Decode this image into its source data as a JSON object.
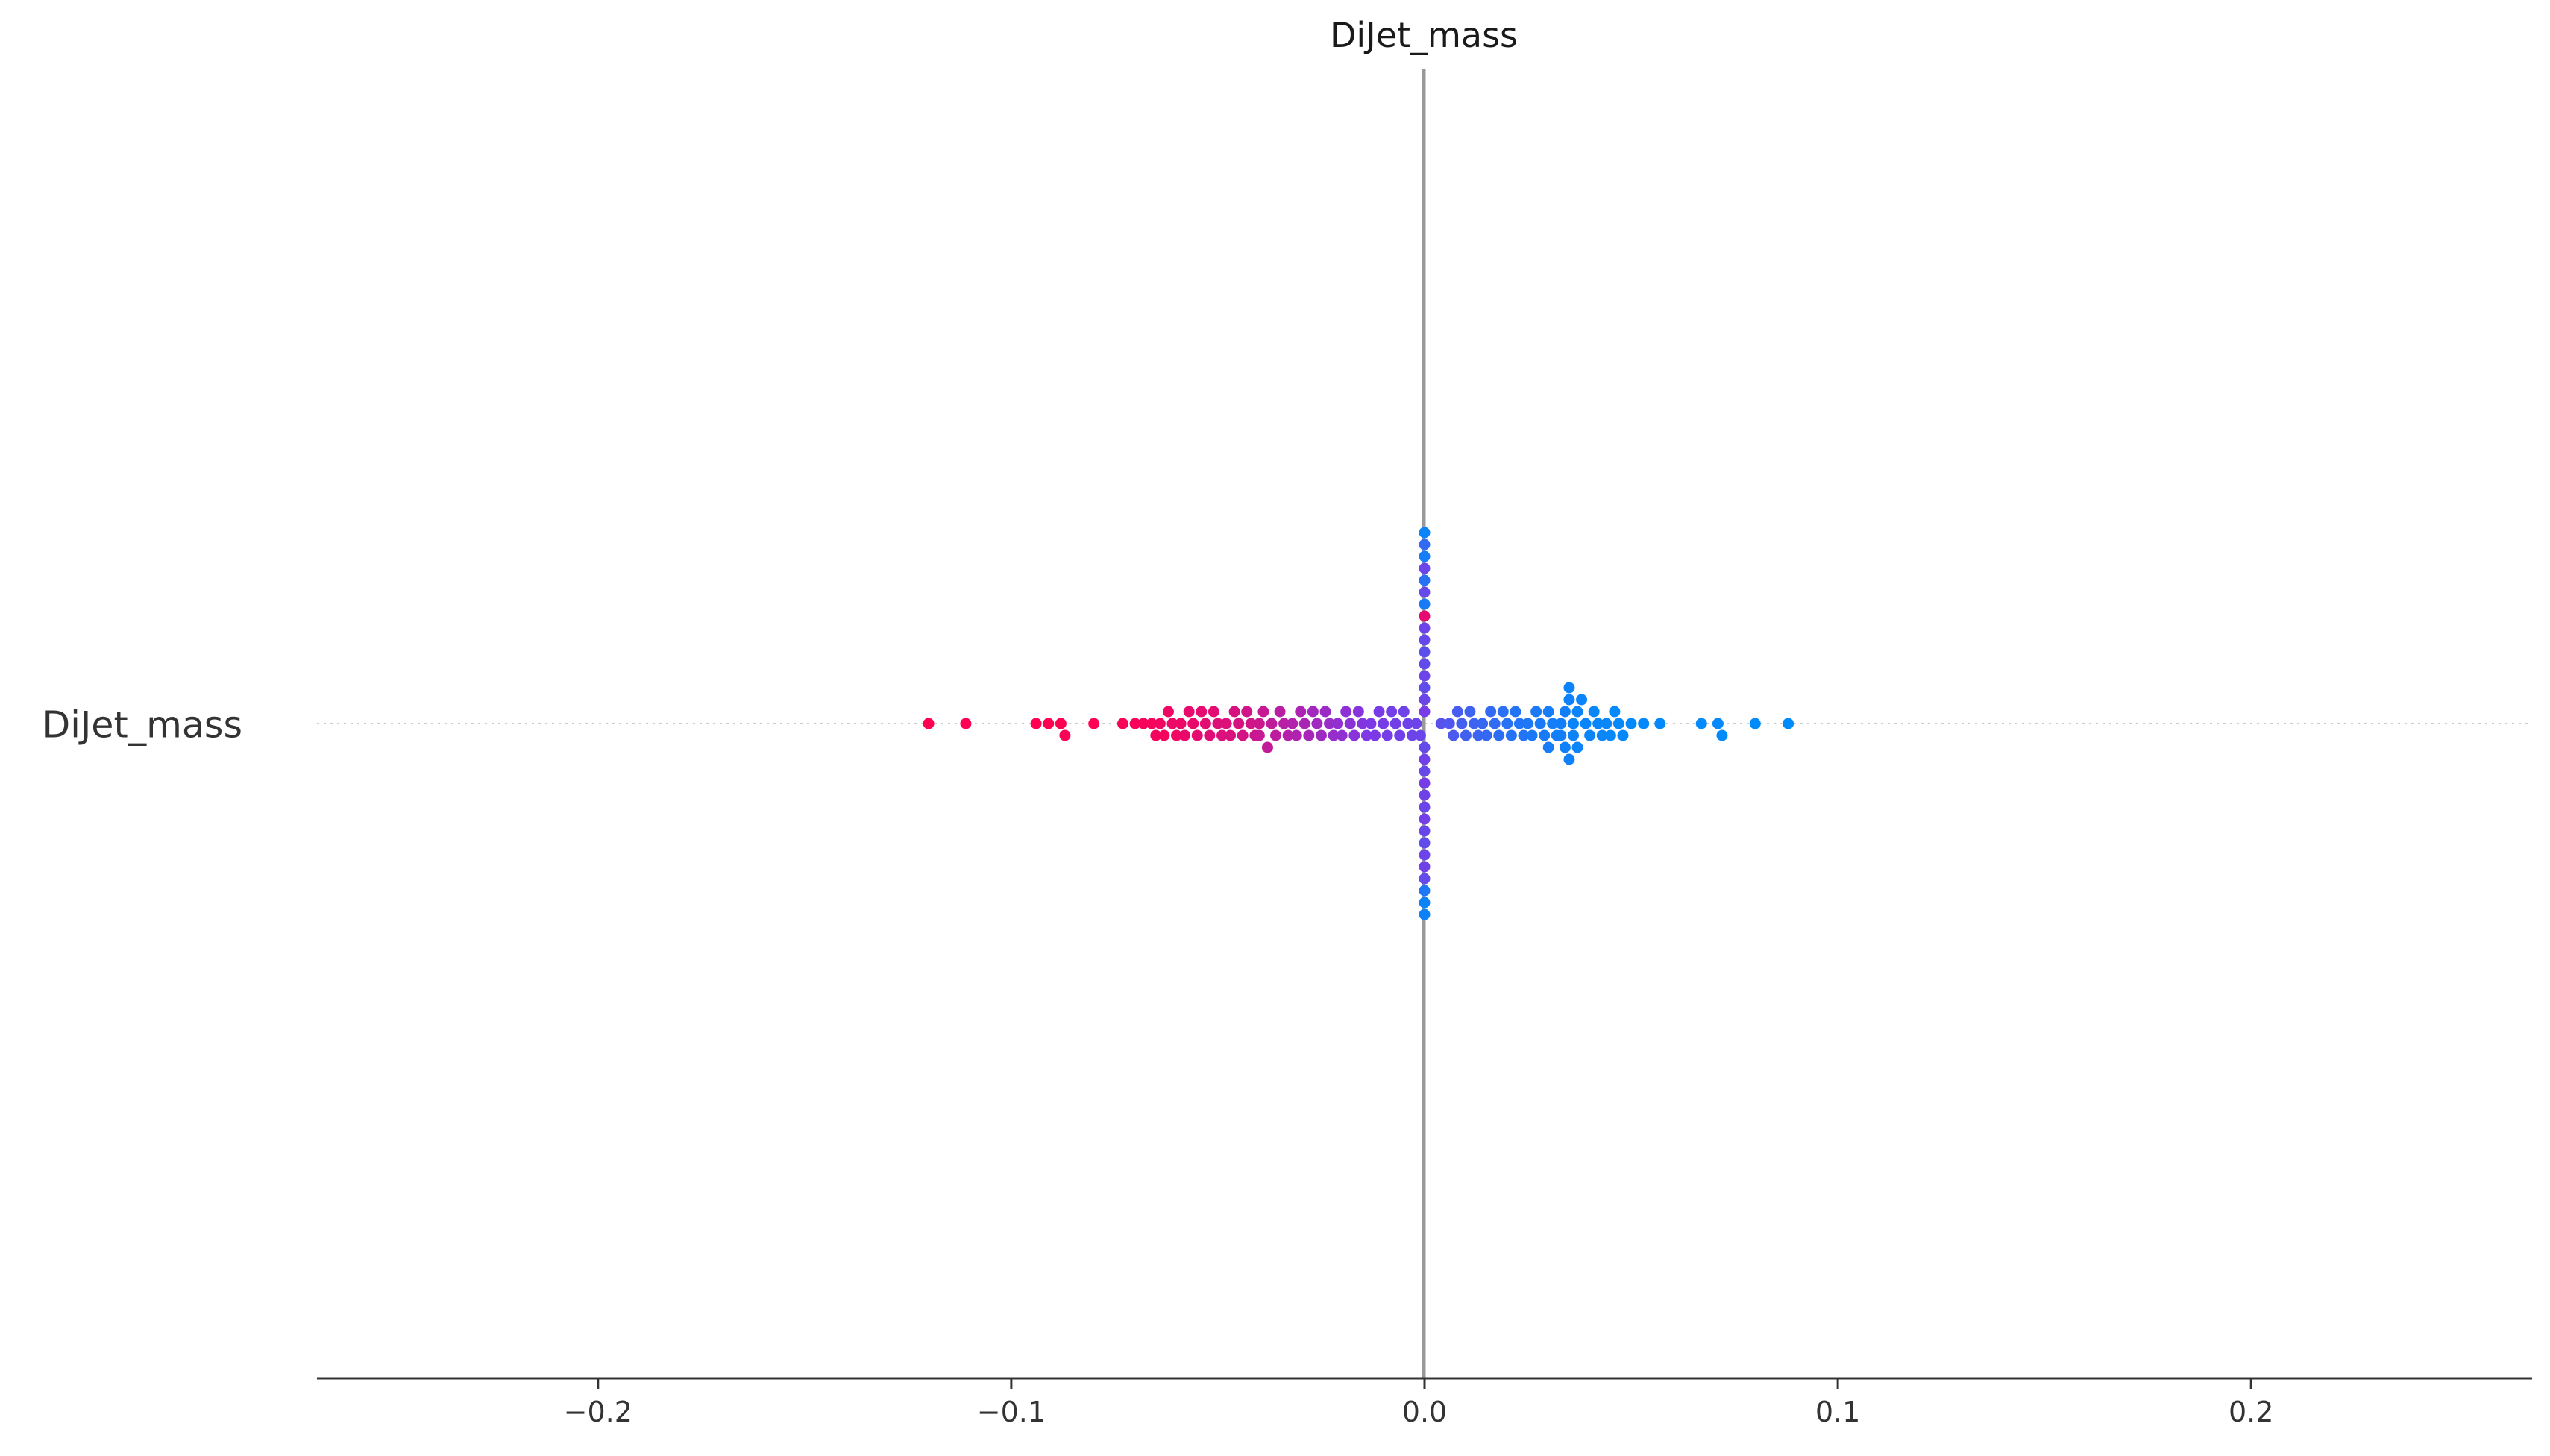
{
  "chart_data": {
    "type": "scatter",
    "title": "DiJet_mass",
    "categories": [
      "DiJet_mass"
    ],
    "xlim": [
      -0.268,
      0.268
    ],
    "x_ticks": [
      -0.2,
      -0.1,
      0.0,
      0.1,
      0.2
    ],
    "x_tick_labels": [
      "−0.2",
      "−0.1",
      "0.0",
      "0.1",
      "0.2"
    ],
    "grid": false,
    "legend": "none",
    "colors": {
      "high": "#ff0052",
      "low": "#008bfb",
      "zero_line": "#999999",
      "axis": "#333333"
    },
    "series": [
      {
        "values": [
          {
            "x": -0.12,
            "c": 1.0
          },
          {
            "x": -0.111,
            "c": 1.0
          },
          {
            "x": -0.094,
            "c": 1.0
          },
          {
            "x": -0.091,
            "c": 1.0
          },
          {
            "x": -0.088,
            "c": 1.0
          },
          {
            "x": -0.087,
            "c": 0.98
          },
          {
            "x": -0.08,
            "c": 1.0
          },
          {
            "x": -0.073,
            "c": 0.98
          },
          {
            "x": -0.07,
            "c": 0.97
          },
          {
            "x": -0.068,
            "c": 0.97
          },
          {
            "x": -0.066,
            "c": 0.97
          },
          {
            "x": -0.065,
            "c": 0.96
          },
          {
            "x": -0.064,
            "c": 0.95
          },
          {
            "x": -0.063,
            "c": 0.96
          },
          {
            "x": -0.062,
            "c": 0.94
          },
          {
            "x": -0.061,
            "c": 0.93
          },
          {
            "x": -0.06,
            "c": 0.95
          },
          {
            "x": -0.059,
            "c": 0.93
          },
          {
            "x": -0.058,
            "c": 0.92
          },
          {
            "x": -0.057,
            "c": 0.91
          },
          {
            "x": -0.056,
            "c": 0.92
          },
          {
            "x": -0.055,
            "c": 0.9
          },
          {
            "x": -0.054,
            "c": 0.9
          },
          {
            "x": -0.053,
            "c": 0.89
          },
          {
            "x": -0.052,
            "c": 0.88
          },
          {
            "x": -0.051,
            "c": 0.89
          },
          {
            "x": -0.05,
            "c": 0.87
          },
          {
            "x": -0.049,
            "c": 0.86
          },
          {
            "x": -0.048,
            "c": 0.86
          },
          {
            "x": -0.047,
            "c": 0.85
          },
          {
            "x": -0.046,
            "c": 0.84
          },
          {
            "x": -0.045,
            "c": 0.84
          },
          {
            "x": -0.044,
            "c": 0.83
          },
          {
            "x": -0.043,
            "c": 0.82
          },
          {
            "x": -0.042,
            "c": 0.82
          },
          {
            "x": -0.041,
            "c": 0.8
          },
          {
            "x": -0.04,
            "c": 0.8
          },
          {
            "x": -0.04,
            "c": 0.78
          },
          {
            "x": -0.039,
            "c": 0.78
          },
          {
            "x": -0.038,
            "c": 0.76
          },
          {
            "x": -0.037,
            "c": 0.75
          },
          {
            "x": -0.036,
            "c": 0.74
          },
          {
            "x": -0.035,
            "c": 0.73
          },
          {
            "x": -0.034,
            "c": 0.72
          },
          {
            "x": -0.033,
            "c": 0.71
          },
          {
            "x": -0.032,
            "c": 0.7
          },
          {
            "x": -0.031,
            "c": 0.69
          },
          {
            "x": -0.03,
            "c": 0.68
          },
          {
            "x": -0.029,
            "c": 0.67
          },
          {
            "x": -0.028,
            "c": 0.66
          },
          {
            "x": -0.027,
            "c": 0.64
          },
          {
            "x": -0.026,
            "c": 0.63
          },
          {
            "x": -0.025,
            "c": 0.62
          },
          {
            "x": -0.024,
            "c": 0.61
          },
          {
            "x": -0.023,
            "c": 0.6
          },
          {
            "x": -0.022,
            "c": 0.59
          },
          {
            "x": -0.021,
            "c": 0.58
          },
          {
            "x": -0.02,
            "c": 0.57
          },
          {
            "x": -0.019,
            "c": 0.56
          },
          {
            "x": -0.018,
            "c": 0.55
          },
          {
            "x": -0.017,
            "c": 0.54
          },
          {
            "x": -0.016,
            "c": 0.53
          },
          {
            "x": -0.015,
            "c": 0.52
          },
          {
            "x": -0.014,
            "c": 0.51
          },
          {
            "x": -0.013,
            "c": 0.5
          },
          {
            "x": -0.012,
            "c": 0.49
          },
          {
            "x": -0.011,
            "c": 0.48
          },
          {
            "x": -0.01,
            "c": 0.47
          },
          {
            "x": -0.009,
            "c": 0.47
          },
          {
            "x": -0.008,
            "c": 0.46
          },
          {
            "x": -0.007,
            "c": 0.45
          },
          {
            "x": -0.006,
            "c": 0.45
          },
          {
            "x": -0.005,
            "c": 0.44
          },
          {
            "x": -0.004,
            "c": 0.44
          },
          {
            "x": -0.003,
            "c": 0.43
          },
          {
            "x": -0.002,
            "c": 0.43
          },
          {
            "x": -0.001,
            "c": 0.42
          },
          {
            "x": 0.0,
            "c": 0.48
          },
          {
            "x": 0.0,
            "c": 0.4
          },
          {
            "x": 0.0,
            "c": 0.42
          },
          {
            "x": 0.0,
            "c": 0.45
          },
          {
            "x": 0.0,
            "c": 0.38
          },
          {
            "x": 0.0,
            "c": 0.41
          },
          {
            "x": 0.0,
            "c": 0.43
          },
          {
            "x": 0.0,
            "c": 0.47
          },
          {
            "x": 0.0,
            "c": 0.39
          },
          {
            "x": 0.0,
            "c": 0.44
          },
          {
            "x": 0.0,
            "c": 0.36
          },
          {
            "x": 0.0,
            "c": 0.42
          },
          {
            "x": 0.0,
            "c": 0.4
          },
          {
            "x": 0.0,
            "c": 0.46
          },
          {
            "x": 0.0,
            "c": 0.43
          },
          {
            "x": 0.0,
            "c": 0.41
          },
          {
            "x": 0.0,
            "c": 0.9
          },
          {
            "x": 0.0,
            "c": 0.38
          },
          {
            "x": 0.0,
            "c": 0.1
          },
          {
            "x": 0.0,
            "c": 0.43
          },
          {
            "x": 0.0,
            "c": 0.4
          },
          {
            "x": 0.0,
            "c": 0.44
          },
          {
            "x": 0.0,
            "c": 0.15
          },
          {
            "x": 0.0,
            "c": 0.4
          },
          {
            "x": 0.0,
            "c": 0.42
          },
          {
            "x": 0.0,
            "c": 0.12
          },
          {
            "x": 0.0,
            "c": 0.08
          },
          {
            "x": 0.0,
            "c": 0.05
          },
          {
            "x": 0.0,
            "c": 0.2
          },
          {
            "x": 0.0,
            "c": 0.06
          },
          {
            "x": 0.0,
            "c": 0.04
          },
          {
            "x": 0.004,
            "c": 0.35
          },
          {
            "x": 0.006,
            "c": 0.32
          },
          {
            "x": 0.007,
            "c": 0.3
          },
          {
            "x": 0.008,
            "c": 0.28
          },
          {
            "x": 0.009,
            "c": 0.27
          },
          {
            "x": 0.01,
            "c": 0.26
          },
          {
            "x": 0.011,
            "c": 0.25
          },
          {
            "x": 0.012,
            "c": 0.24
          },
          {
            "x": 0.013,
            "c": 0.23
          },
          {
            "x": 0.014,
            "c": 0.22
          },
          {
            "x": 0.015,
            "c": 0.21
          },
          {
            "x": 0.016,
            "c": 0.2
          },
          {
            "x": 0.017,
            "c": 0.19
          },
          {
            "x": 0.018,
            "c": 0.18
          },
          {
            "x": 0.019,
            "c": 0.17
          },
          {
            "x": 0.02,
            "c": 0.16
          },
          {
            "x": 0.021,
            "c": 0.15
          },
          {
            "x": 0.022,
            "c": 0.14
          },
          {
            "x": 0.023,
            "c": 0.13
          },
          {
            "x": 0.024,
            "c": 0.13
          },
          {
            "x": 0.025,
            "c": 0.12
          },
          {
            "x": 0.026,
            "c": 0.11
          },
          {
            "x": 0.027,
            "c": 0.11
          },
          {
            "x": 0.028,
            "c": 0.1
          },
          {
            "x": 0.029,
            "c": 0.1
          },
          {
            "x": 0.03,
            "c": 0.09
          },
          {
            "x": 0.03,
            "c": 0.09
          },
          {
            "x": 0.031,
            "c": 0.08
          },
          {
            "x": 0.032,
            "c": 0.08
          },
          {
            "x": 0.033,
            "c": 0.07
          },
          {
            "x": 0.033,
            "c": 0.07
          },
          {
            "x": 0.034,
            "c": 0.07
          },
          {
            "x": 0.034,
            "c": 0.06
          },
          {
            "x": 0.035,
            "c": 0.06
          },
          {
            "x": 0.035,
            "c": 0.06
          },
          {
            "x": 0.035,
            "c": 0.05
          },
          {
            "x": 0.036,
            "c": 0.05
          },
          {
            "x": 0.036,
            "c": 0.05
          },
          {
            "x": 0.037,
            "c": 0.05
          },
          {
            "x": 0.037,
            "c": 0.04
          },
          {
            "x": 0.038,
            "c": 0.04
          },
          {
            "x": 0.039,
            "c": 0.04
          },
          {
            "x": 0.04,
            "c": 0.04
          },
          {
            "x": 0.041,
            "c": 0.03
          },
          {
            "x": 0.042,
            "c": 0.03
          },
          {
            "x": 0.043,
            "c": 0.03
          },
          {
            "x": 0.044,
            "c": 0.03
          },
          {
            "x": 0.045,
            "c": 0.02
          },
          {
            "x": 0.046,
            "c": 0.02
          },
          {
            "x": 0.047,
            "c": 0.02
          },
          {
            "x": 0.048,
            "c": 0.02
          },
          {
            "x": 0.05,
            "c": 0.02
          },
          {
            "x": 0.053,
            "c": 0.01
          },
          {
            "x": 0.057,
            "c": 0.01
          },
          {
            "x": 0.067,
            "c": 0.01
          },
          {
            "x": 0.071,
            "c": 0.01
          },
          {
            "x": 0.072,
            "c": 0.0
          },
          {
            "x": 0.08,
            "c": 0.0
          },
          {
            "x": 0.088,
            "c": 0.0
          }
        ]
      }
    ]
  }
}
